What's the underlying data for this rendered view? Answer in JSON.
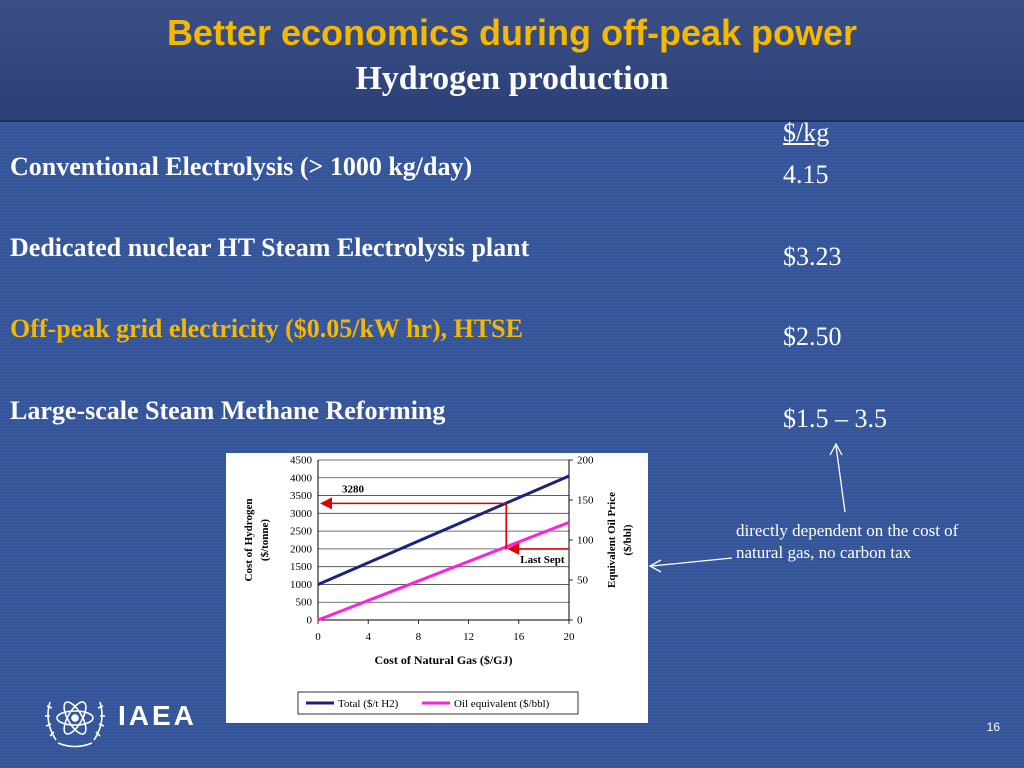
{
  "slide": {
    "title": "Better economics during off-peak power",
    "subtitle": "Hydrogen production",
    "price_header": "$/kg",
    "rows": [
      {
        "label": "Conventional Electrolysis (> 1000 kg/day)",
        "price": "4.15",
        "highlight": false
      },
      {
        "label": "Dedicated nuclear HT Steam Electrolysis plant",
        "price": "$3.23",
        "highlight": false
      },
      {
        "label": "Off-peak grid electricity ($0.05/kW hr), HTSE",
        "price": "$2.50",
        "highlight": true
      },
      {
        "label": "Large-scale Steam Methane Reforming",
        "price": "$1.5 – 3.5",
        "highlight": false
      }
    ],
    "note": "directly dependent on the cost of natural gas, no carbon tax",
    "logo_text": "IAEA",
    "page_number": "16",
    "colors": {
      "accent": "#f5b800",
      "background": "#34559a",
      "text": "#ffffff"
    }
  },
  "chart_data": {
    "type": "line",
    "xlabel": "Cost of Natural Gas ($/GJ)",
    "ylabel": "Cost of Hydrogen ($/tonne)",
    "y2label": "Equivalent Oil Price ($/bbl)",
    "x_ticks": [
      "0",
      "4",
      "8",
      "12",
      "16",
      "20"
    ],
    "y_ticks": [
      "0",
      "500",
      "1000",
      "1500",
      "2000",
      "2500",
      "3000",
      "3500",
      "4000",
      "4500"
    ],
    "y2_ticks": [
      "0",
      "50",
      "100",
      "150",
      "200"
    ],
    "xlim": [
      0,
      20
    ],
    "ylim": [
      0,
      4500
    ],
    "y2lim": [
      0,
      200
    ],
    "grid": true,
    "legend": "bottom",
    "series": [
      {
        "name": "Total ($/t H2)",
        "axis": "left",
        "color": "#1a237e",
        "x": [
          0,
          20
        ],
        "y": [
          1000,
          4050
        ]
      },
      {
        "name": "Oil equivalent ($/bbl)",
        "axis": "right",
        "color": "#ff22dd",
        "x": [
          0,
          20
        ],
        "y": [
          0,
          122
        ]
      }
    ],
    "annotations": {
      "value_label": "3280",
      "value_x": 15,
      "value_y": 3280,
      "last_label": "Last Sept",
      "last_y": 2000,
      "arrow_color": "#dd0000"
    }
  }
}
